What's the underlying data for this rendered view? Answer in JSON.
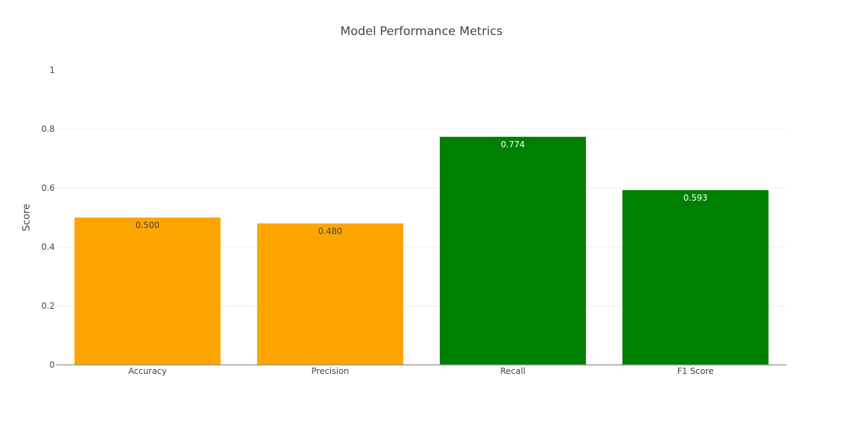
{
  "chart_data": {
    "type": "bar",
    "title": "Model Performance Metrics",
    "xlabel": "",
    "ylabel": "Score",
    "categories": [
      "Accuracy",
      "Precision",
      "Recall",
      "F1 Score"
    ],
    "values": [
      0.5,
      0.48,
      0.774,
      0.593
    ],
    "value_labels": [
      "0.500",
      "0.480",
      "0.774",
      "0.593"
    ],
    "bar_colors": [
      "#FFA500",
      "#FFA500",
      "#008000",
      "#008000"
    ],
    "label_colors": [
      "#444444",
      "#444444",
      "#ffffff",
      "#ffffff"
    ],
    "ylim": [
      0,
      1
    ],
    "y_ticks": [
      0,
      0.2,
      0.4,
      0.6,
      0.8,
      1
    ],
    "y_tick_labels": [
      "0",
      "0.2",
      "0.4",
      "0.6",
      "0.8",
      "1"
    ],
    "grid": true,
    "legend": "none"
  }
}
